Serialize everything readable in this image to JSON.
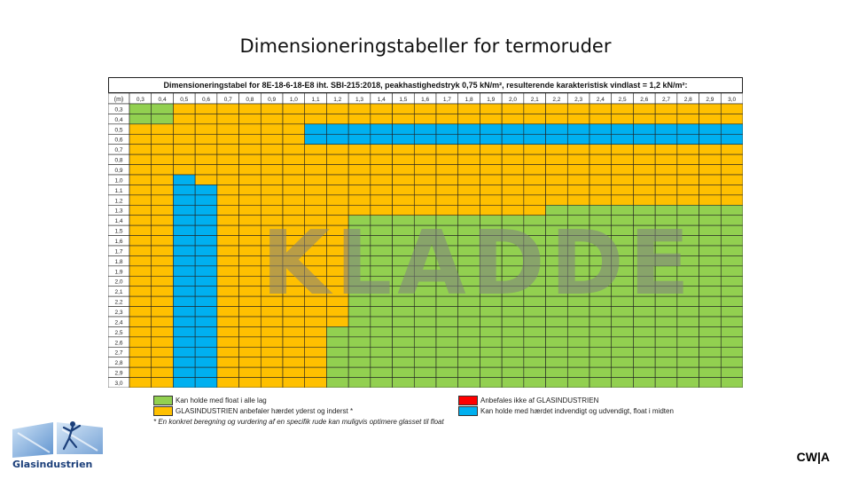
{
  "slide": {
    "title": "Dimensioneringstabeller for termoruder",
    "corner_tag": "CW|A",
    "logo_text": "Glasindustrien"
  },
  "table": {
    "header": "Dimensioneringstabel for 8E-18-6-18-E8 iht. SBI-215:2018, peakhastighedstryk 0,75 kN/m², resulterende karakteristisk vindlast = 1,2 kN/m²:",
    "corner_label": "(m)",
    "columns": [
      "0,3",
      "0,4",
      "0,5",
      "0,6",
      "0,7",
      "0,8",
      "0,9",
      "1,0",
      "1,1",
      "1,2",
      "1,3",
      "1,4",
      "1,5",
      "1,6",
      "1,7",
      "1,8",
      "1,9",
      "2,0",
      "2,1",
      "2,2",
      "2,3",
      "2,4",
      "2,5",
      "2,6",
      "2,7",
      "2,8",
      "2,9",
      "3,0"
    ],
    "rows": [
      "0,3",
      "0,4",
      "0,5",
      "0,6",
      "0,7",
      "0,8",
      "0,9",
      "1,0",
      "1,1",
      "1,2",
      "1,3",
      "1,4",
      "1,5",
      "1,6",
      "1,7",
      "1,8",
      "1,9",
      "2,0",
      "2,1",
      "2,2",
      "2,3",
      "2,4",
      "2,5",
      "2,6",
      "2,7",
      "2,8",
      "2,9",
      "3,0"
    ],
    "watermark": "KLADDE"
  },
  "colors": {
    "green": "#92d050",
    "orange": "#ffc000",
    "red": "#ff0000",
    "blue": "#00b0f0"
  },
  "legend": {
    "green": "Kan holde med float i alle lag",
    "orange": "GLASINDUSTRIEN anbefaler hærdet yderst og inderst *",
    "red": "Anbefales ikke af GLASINDUSTRIEN",
    "blue": "Kan holde med hærdet indvendigt og udvendigt, float i midten"
  },
  "footnote": "* En konkret beregning og vurdering af en specifik rude kan muligvis optimere glasset til float"
}
